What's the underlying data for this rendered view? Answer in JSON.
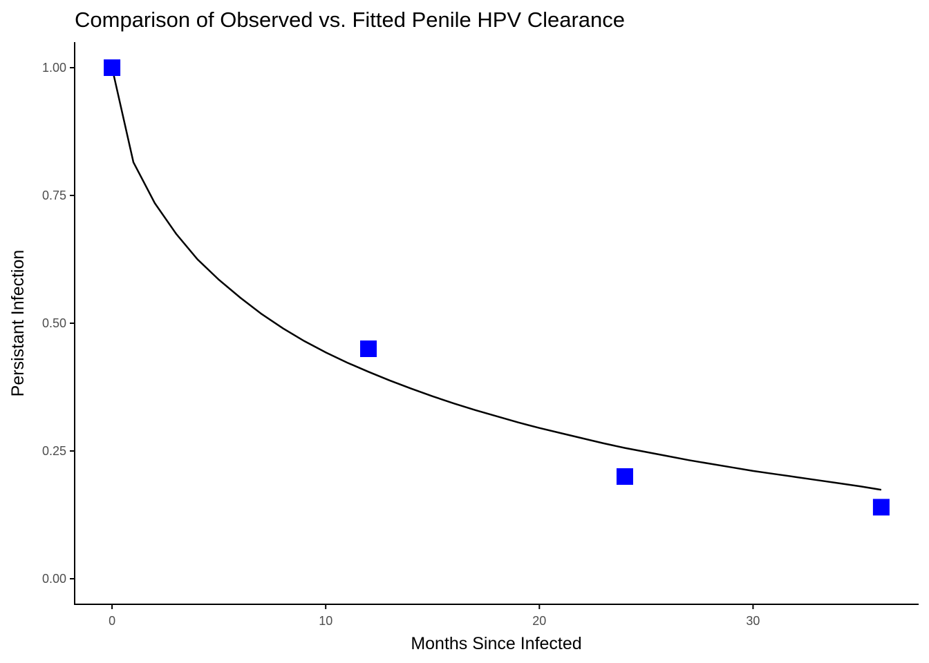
{
  "chart_data": {
    "type": "scatter",
    "title": "Comparison of Observed vs. Fitted Penile HPV Clearance",
    "xlabel": "Months Since Infected",
    "ylabel": "Persistant Infection",
    "xlim": [
      -1.75,
      37.75
    ],
    "ylim": [
      -0.05,
      1.05
    ],
    "x_ticks": [
      {
        "value": 0,
        "label": "0"
      },
      {
        "value": 10,
        "label": "10"
      },
      {
        "value": 20,
        "label": "20"
      },
      {
        "value": 30,
        "label": "30"
      }
    ],
    "y_ticks": [
      {
        "value": 0,
        "label": "0.00"
      },
      {
        "value": 0.25,
        "label": "0.25"
      },
      {
        "value": 0.5,
        "label": "0.50"
      },
      {
        "value": 0.75,
        "label": "0.75"
      },
      {
        "value": 1,
        "label": "1.00"
      }
    ],
    "grid": false,
    "series": [
      {
        "kind": "points",
        "marker": "square",
        "color": "#0000ff",
        "x": [
          0,
          12,
          24,
          36
        ],
        "y": [
          1.0,
          0.45,
          0.2,
          0.14
        ]
      },
      {
        "kind": "line",
        "color": "#000000",
        "x": [
          0,
          1,
          2,
          3,
          4,
          5,
          6,
          7,
          8,
          9,
          10,
          11,
          12,
          13,
          14,
          15,
          16,
          17,
          18,
          19,
          20,
          21,
          22,
          23,
          24,
          25,
          26,
          27,
          28,
          29,
          30,
          31,
          32,
          33,
          34,
          35,
          36
        ],
        "y": [
          1.0,
          0.815,
          0.735,
          0.675,
          0.625,
          0.585,
          0.55,
          0.518,
          0.49,
          0.465,
          0.443,
          0.423,
          0.405,
          0.388,
          0.372,
          0.357,
          0.343,
          0.33,
          0.318,
          0.306,
          0.295,
          0.285,
          0.275,
          0.265,
          0.256,
          0.248,
          0.24,
          0.232,
          0.225,
          0.218,
          0.211,
          0.205,
          0.199,
          0.193,
          0.187,
          0.181,
          0.174
        ]
      }
    ]
  }
}
